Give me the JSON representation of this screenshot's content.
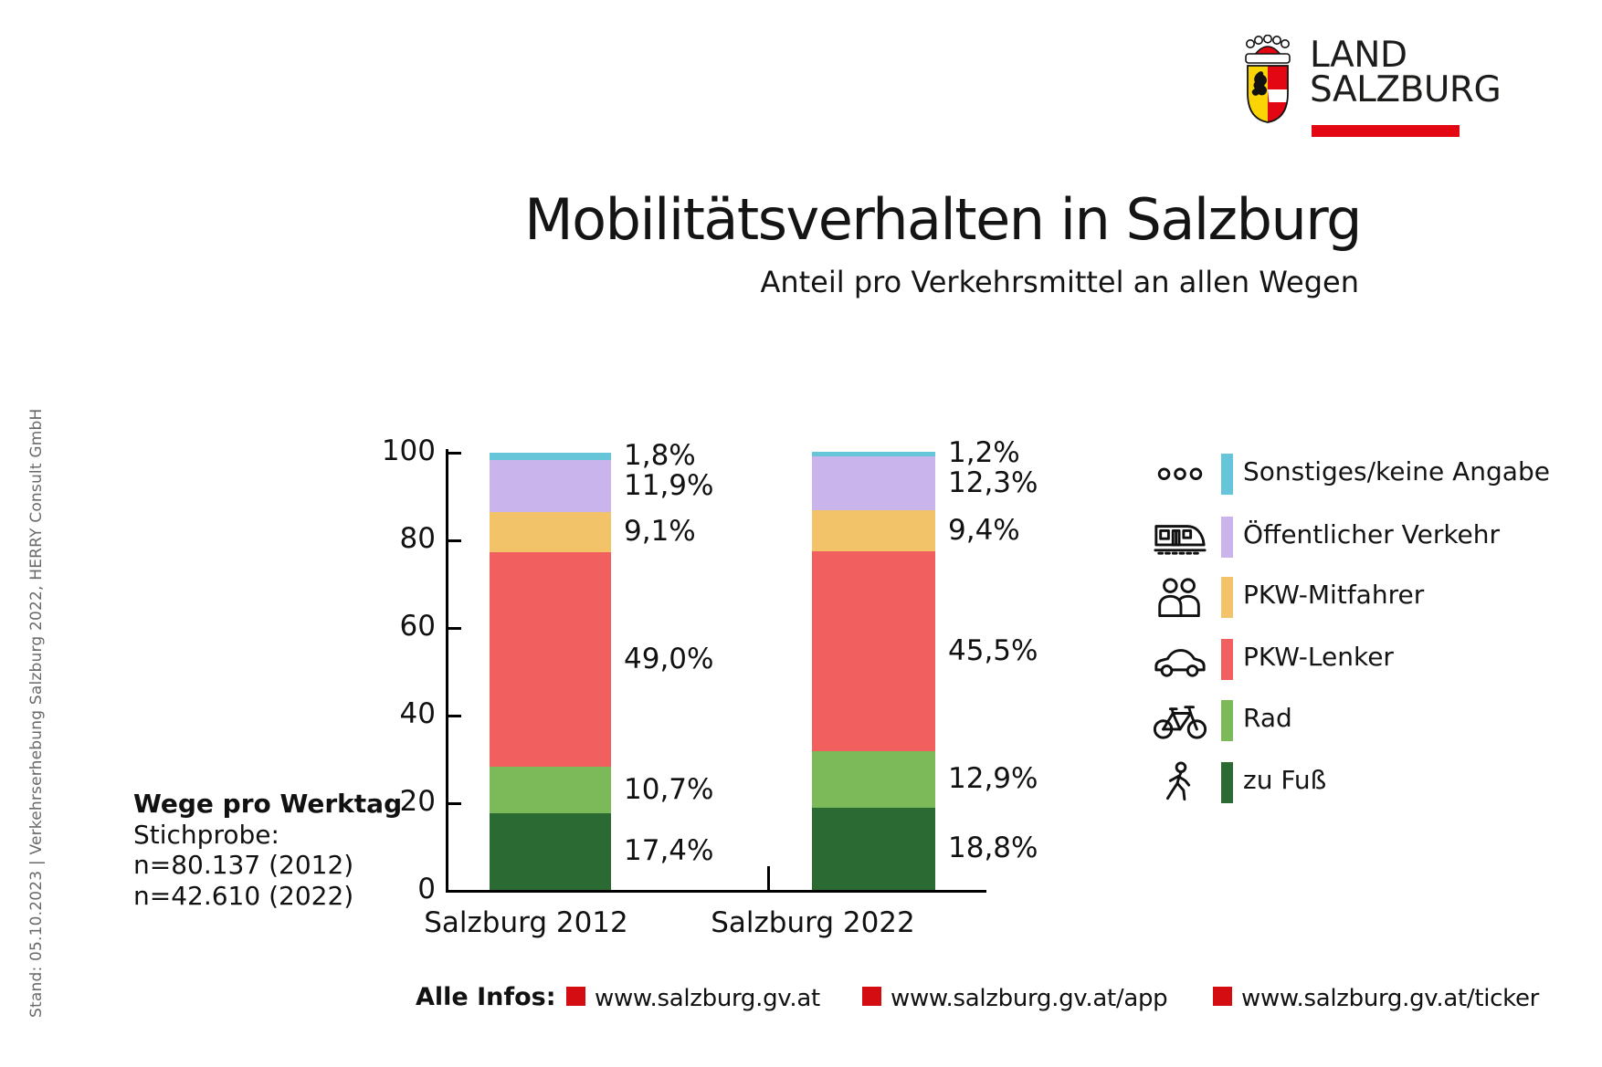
{
  "sidebar_note": "Stand: 05.10.2023 | Verkehrserhebung Salzburg 2022, HERRY Consult GmbH",
  "logo": {
    "line1": "LAND",
    "line2": "SALZBURG",
    "bar_color": "#e30613",
    "shield_gold": "#fbd405",
    "shield_red": "#e30613"
  },
  "header": {
    "title": "Mobilitätsverhalten in Salzburg",
    "subtitle": "Anteil pro Verkehrsmittel an allen Wegen"
  },
  "info_block": {
    "line1": "Wege pro Werktag",
    "line2": "Stichprobe:",
    "line3": "n=80.137 (2012)",
    "line4": "n=42.610 (2022)"
  },
  "chart_data": {
    "type": "stacked-bar",
    "unit": "percent",
    "title": "Anteil pro Verkehrsmittel an allen Wegen",
    "categories": [
      "Salzburg 2012",
      "Salzburg 2022"
    ],
    "y_axis": {
      "min": 0,
      "max": 100,
      "ticks": [
        0,
        20,
        40,
        60,
        80,
        100
      ]
    },
    "grid": false,
    "legend_position": "right",
    "series_top_to_bottom": [
      {
        "name": "Sonstiges/keine Angabe",
        "icon": "dots-icon",
        "color": "#66c5d8",
        "values": [
          1.8,
          1.2
        ],
        "labels": [
          "1,8%",
          "1,2%"
        ]
      },
      {
        "name": "Öffentlicher Verkehr",
        "icon": "train-icon",
        "color": "#c9b5eb",
        "values": [
          11.9,
          12.3
        ],
        "labels": [
          "11,9%",
          "12,3%"
        ]
      },
      {
        "name": "PKW-Mitfahrer",
        "icon": "people-icon",
        "color": "#f3c369",
        "values": [
          9.1,
          9.4
        ],
        "labels": [
          "9,1%",
          "9,4%"
        ]
      },
      {
        "name": "PKW-Lenker",
        "icon": "car-icon",
        "color": "#f1605e",
        "values": [
          49.0,
          45.5
        ],
        "labels": [
          "49,0%",
          "45,5%"
        ]
      },
      {
        "name": "Rad",
        "icon": "bicycle-icon",
        "color": "#7cba59",
        "values": [
          10.7,
          12.9
        ],
        "labels": [
          "10,7%",
          "12,9%"
        ]
      },
      {
        "name": "zu Fuß",
        "icon": "pedestrian-icon",
        "color": "#2c6a33",
        "values": [
          17.4,
          18.8
        ],
        "labels": [
          "17,4%",
          "18,8%"
        ]
      }
    ]
  },
  "footer": {
    "label": "Alle Infos:",
    "bullet_color": "#d40d12",
    "links": [
      {
        "text": "www.salzburg.gv.at"
      },
      {
        "text": "www.salzburg.gv.at/app"
      },
      {
        "text": "www.salzburg.gv.at/ticker"
      }
    ]
  }
}
